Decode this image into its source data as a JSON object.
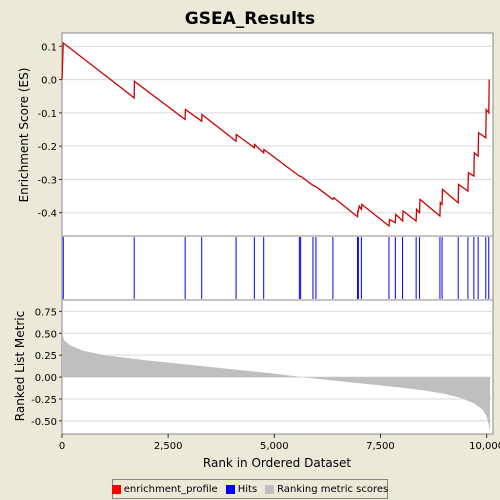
{
  "chart_data": {
    "type": "line",
    "title": "GSEA_Results",
    "xlabel": "Rank in Ordered Dataset",
    "xlim": [
      0,
      10150
    ],
    "x_ticks": [
      0,
      2500,
      5000,
      7500,
      10000
    ],
    "x_tick_labels": [
      "0",
      "2,500",
      "5,000",
      "7,500",
      "10,000"
    ],
    "panels": [
      {
        "name": "enrichment",
        "ylabel": "Enrichment Score (ES)",
        "ylim": [
          -0.47,
          0.14
        ],
        "y_ticks": [
          0.1,
          0.0,
          -0.1,
          -0.2,
          -0.3,
          -0.4
        ],
        "y_tick_labels": [
          "0.1",
          "0.0",
          "-0.1",
          "-0.2",
          "-0.3",
          "-0.4"
        ],
        "color": "#cc0000",
        "series": [
          {
            "name": "enrichment_profile",
            "x": [
              0,
              30,
              1700,
              1705,
              2900,
              2905,
              3290,
              3295,
              4100,
              4105,
              4530,
              4535,
              4750,
              4755,
              5590,
              5620,
              5910,
              5980,
              6380,
              6400,
              6960,
              6965,
              6980,
              7000,
              7050,
              7060,
              7700,
              7710,
              7850,
              7860,
              8020,
              8030,
              8340,
              8350,
              8420,
              8430,
              8900,
              8910,
              8950,
              8960,
              9330,
              9340,
              9560,
              9570,
              9700,
              9710,
              9800,
              9810,
              9980,
              9990,
              10050,
              10060
            ],
            "y": [
              0.0,
              0.11,
              -0.055,
              -0.005,
              -0.12,
              -0.09,
              -0.125,
              -0.105,
              -0.185,
              -0.165,
              -0.205,
              -0.195,
              -0.22,
              -0.21,
              -0.29,
              -0.29,
              -0.318,
              -0.322,
              -0.36,
              -0.355,
              -0.412,
              -0.395,
              -0.395,
              -0.38,
              -0.39,
              -0.375,
              -0.44,
              -0.42,
              -0.43,
              -0.405,
              -0.425,
              -0.395,
              -0.425,
              -0.39,
              -0.4,
              -0.36,
              -0.41,
              -0.37,
              -0.375,
              -0.33,
              -0.37,
              -0.315,
              -0.335,
              -0.28,
              -0.29,
              -0.22,
              -0.23,
              -0.16,
              -0.175,
              -0.09,
              -0.1,
              0.0
            ]
          }
        ]
      },
      {
        "name": "hits",
        "color": "#0000ff",
        "series": [
          {
            "name": "Hits",
            "x": [
              30,
              1700,
              2900,
              3290,
              4100,
              4530,
              4750,
              5590,
              5620,
              5910,
              5980,
              6380,
              6960,
              6980,
              7050,
              7700,
              7850,
              8020,
              8340,
              8420,
              8900,
              8950,
              9330,
              9560,
              9700,
              9800,
              9980,
              10050
            ]
          }
        ]
      },
      {
        "name": "ranking",
        "ylabel": "Ranked List Metric",
        "ylim": [
          -0.65,
          0.88
        ],
        "y_ticks": [
          0.75,
          0.5,
          0.25,
          0.0,
          -0.25,
          -0.5
        ],
        "y_tick_labels": [
          "0.75",
          "0.50",
          "0.25",
          "0.00",
          "-0.25",
          "-0.50"
        ],
        "color": "#bfbfbf",
        "series": [
          {
            "name": "Ranking metric scores",
            "x": [
              0,
              50,
              200,
              500,
              1000,
              2000,
              3000,
              4000,
              5000,
              5500,
              6000,
              7000,
              8000,
              8500,
              9000,
              9400,
              9700,
              9900,
              10000,
              10050,
              10080
            ],
            "y": [
              0.52,
              0.42,
              0.36,
              0.3,
              0.25,
              0.19,
              0.14,
              0.09,
              0.04,
              0.01,
              -0.02,
              -0.07,
              -0.12,
              -0.15,
              -0.19,
              -0.24,
              -0.3,
              -0.37,
              -0.45,
              -0.55,
              -0.62
            ]
          }
        ]
      }
    ],
    "legend": {
      "placement": "bottom",
      "items": [
        {
          "name": "enrichment_profile",
          "color": "#ff0000"
        },
        {
          "name": "Hits",
          "color": "#0000ff"
        },
        {
          "name": "Ranking metric scores",
          "color": "#bfbfbf"
        }
      ]
    }
  }
}
